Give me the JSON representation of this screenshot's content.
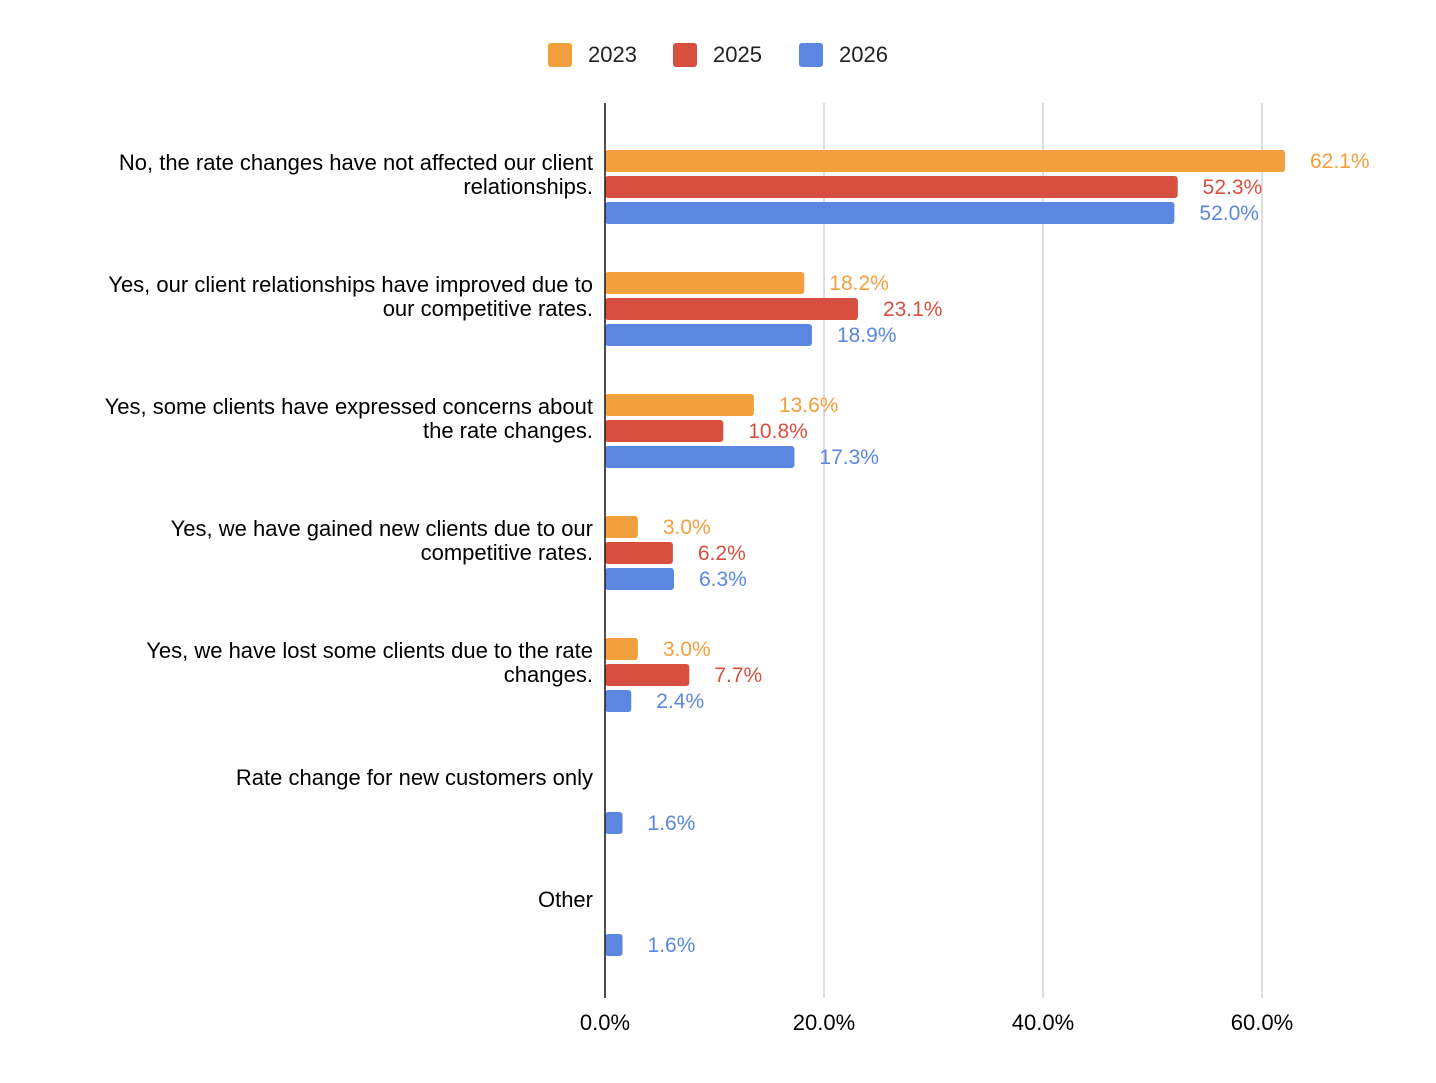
{
  "chart_data": {
    "type": "bar",
    "orientation": "horizontal",
    "title": "",
    "xlabel": "",
    "ylabel": "",
    "xlim": [
      0,
      70
    ],
    "grid": true,
    "legend_position": "top-center",
    "categories": [
      [
        "No, the rate changes have not affected our client",
        "relationships."
      ],
      [
        "Yes, our client relationships have improved due to",
        "our competitive rates."
      ],
      [
        "Yes, some clients have expressed concerns about",
        "the rate changes."
      ],
      [
        "Yes, we have gained new clients due to our",
        "competitive rates."
      ],
      [
        "Yes, we have lost some clients due to the rate",
        "changes."
      ],
      [
        "Rate change for new customers only"
      ],
      [
        "Other"
      ]
    ],
    "series": [
      {
        "name": "2023",
        "color": "#F2A03D",
        "values": [
          62.1,
          18.2,
          13.6,
          3.0,
          3.0,
          null,
          null
        ],
        "labels": [
          "62.1%",
          "18.2%",
          "13.6%",
          "3.0%",
          "3.0%",
          null,
          null
        ]
      },
      {
        "name": "2025",
        "color": "#D94F3F",
        "values": [
          52.3,
          23.1,
          10.8,
          6.2,
          7.7,
          null,
          null
        ],
        "labels": [
          "52.3%",
          "23.1%",
          "10.8%",
          "6.2%",
          "7.7%",
          null,
          null
        ]
      },
      {
        "name": "2026",
        "color": "#5B87E1",
        "values": [
          52.0,
          18.9,
          17.3,
          6.3,
          2.4,
          1.6,
          1.6
        ],
        "labels": [
          "52.0%",
          "18.9%",
          "17.3%",
          "6.3%",
          "2.4%",
          "1.6%",
          "1.6%"
        ]
      }
    ],
    "x_ticks": [
      0,
      20,
      40,
      60
    ],
    "x_tick_labels": [
      "0.0%",
      "20.0%",
      "40.0%",
      "60.0%"
    ]
  }
}
